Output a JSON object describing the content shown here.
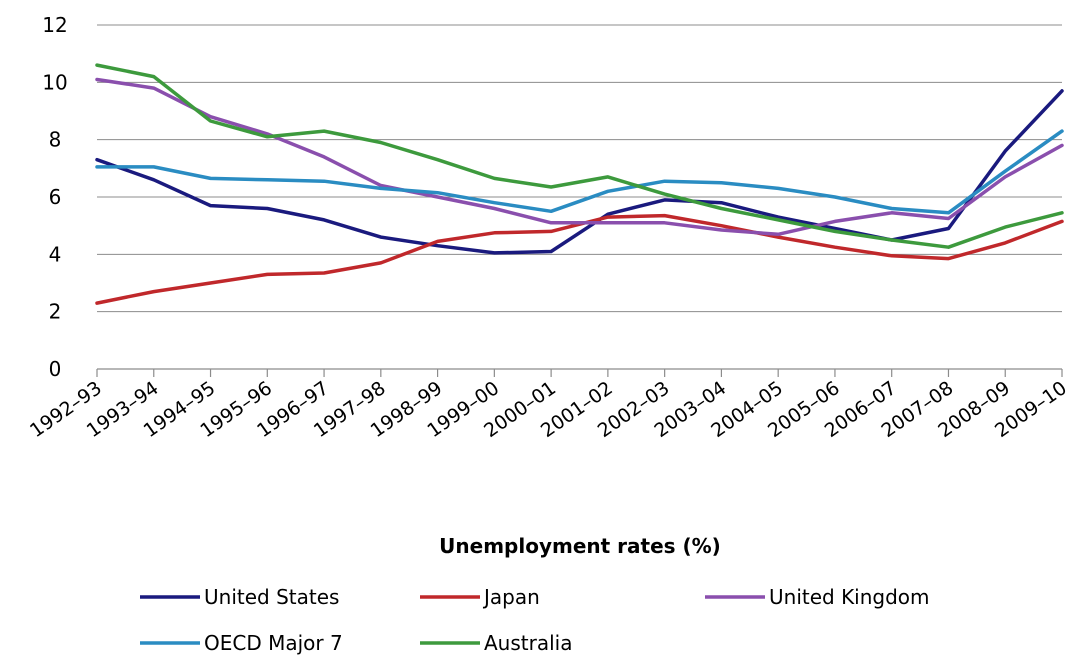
{
  "chart_data": {
    "type": "line",
    "xlabel": "Unemployment rates (%)",
    "ylabel": "",
    "ylim": [
      0,
      12
    ],
    "yticks": [
      "0",
      "2",
      "4",
      "6",
      "8",
      "10",
      "12"
    ],
    "categories": [
      "1992–93",
      "1993–94",
      "1994–95",
      "1995–96",
      "1996–97",
      "1997–98",
      "1998–99",
      "1999–00",
      "2000–01",
      "2001–02",
      "2002–03",
      "2003–04",
      "2004–05",
      "2005–06",
      "2006–07",
      "2007–08",
      "2008–09",
      "2009–10"
    ],
    "grid": true,
    "legend_position": "bottom",
    "series": [
      {
        "name": "United States",
        "color": "#1a1a7e",
        "values": [
          7.3,
          6.6,
          5.7,
          5.6,
          5.2,
          4.6,
          4.3,
          4.05,
          4.1,
          5.4,
          5.9,
          5.8,
          5.3,
          4.9,
          4.5,
          4.9,
          7.6,
          9.7
        ]
      },
      {
        "name": "Japan",
        "color": "#c0282b",
        "values": [
          2.3,
          2.7,
          3.0,
          3.3,
          3.35,
          3.7,
          4.45,
          4.75,
          4.8,
          5.3,
          5.35,
          5.0,
          4.6,
          4.25,
          3.95,
          3.85,
          4.4,
          5.15
        ]
      },
      {
        "name": "United Kingdom",
        "color": "#8a4fad",
        "values": [
          10.1,
          9.8,
          8.8,
          8.2,
          7.4,
          6.4,
          6.0,
          5.6,
          5.1,
          5.1,
          5.1,
          4.85,
          4.7,
          5.15,
          5.45,
          5.25,
          6.7,
          7.8
        ]
      },
      {
        "name": "OECD Major 7",
        "color": "#2a8cc2",
        "values": [
          7.05,
          7.05,
          6.65,
          6.6,
          6.55,
          6.3,
          6.15,
          5.8,
          5.5,
          6.2,
          6.55,
          6.5,
          6.3,
          6.0,
          5.6,
          5.45,
          6.9,
          8.3
        ]
      },
      {
        "name": "Australia",
        "color": "#3d9a3d",
        "values": [
          10.6,
          10.2,
          8.65,
          8.1,
          8.3,
          7.9,
          7.3,
          6.65,
          6.35,
          6.7,
          6.1,
          5.6,
          5.2,
          4.8,
          4.5,
          4.25,
          4.95,
          5.45
        ]
      }
    ]
  }
}
